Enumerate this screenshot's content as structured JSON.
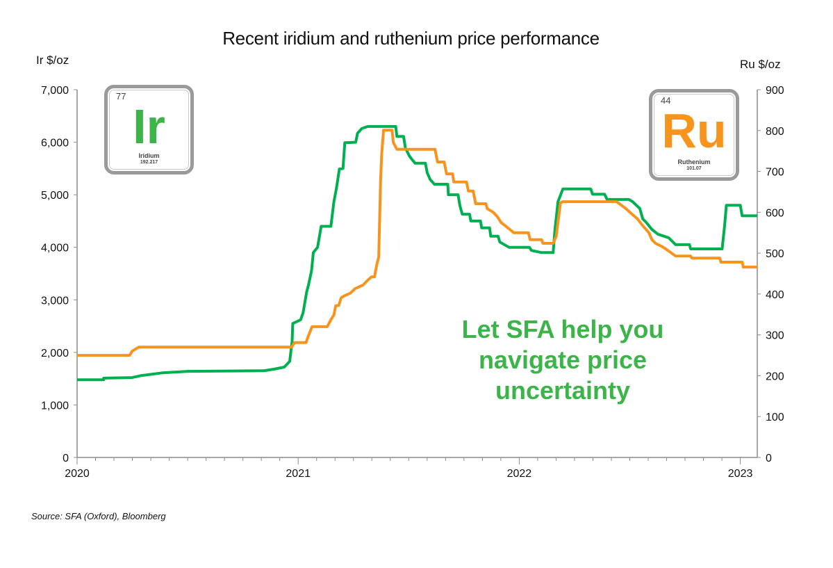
{
  "chart_data": {
    "type": "line",
    "title": "Recent iridium and ruthenium price performance",
    "ylabel_left": "Ir $/oz",
    "ylabel_right": "Ru $/oz",
    "xlabel": "",
    "x_ticks": [
      "2020",
      "2021",
      "2022",
      "2023"
    ],
    "y_left_ticks": [
      "0",
      "1,000",
      "2,000",
      "3,000",
      "4,000",
      "5,000",
      "6,000",
      "7,000"
    ],
    "y_right_ticks": [
      "0",
      "100",
      "200",
      "300",
      "400",
      "500",
      "600",
      "700",
      "800",
      "900"
    ],
    "ylim_left": [
      0,
      7000
    ],
    "ylim_right": [
      0,
      900
    ],
    "xlim": [
      "2020-01-01",
      "2023-01-29"
    ],
    "grid": false,
    "legend": "none",
    "series": [
      {
        "element": "Ir",
        "axis": "left",
        "color": "#00b050",
        "points": [
          [
            "2020-01-01",
            1480
          ],
          [
            "2020-02-14",
            1480
          ],
          [
            "2020-02-14",
            1510
          ],
          [
            "2020-04-01",
            1520
          ],
          [
            "2020-04-17",
            1560
          ],
          [
            "2020-05-21",
            1610
          ],
          [
            "2020-07-02",
            1640
          ],
          [
            "2020-11-05",
            1650
          ],
          [
            "2020-11-22",
            1680
          ],
          [
            "2020-12-09",
            1720
          ],
          [
            "2020-12-18",
            1830
          ],
          [
            "2020-12-22",
            2220
          ],
          [
            "2020-12-23",
            2550
          ],
          [
            "2021-01-05",
            2620
          ],
          [
            "2021-01-09",
            2750
          ],
          [
            "2021-01-15",
            3150
          ],
          [
            "2021-01-18",
            3280
          ],
          [
            "2021-01-23",
            3550
          ],
          [
            "2021-01-26",
            3900
          ],
          [
            "2021-02-02",
            4000
          ],
          [
            "2021-02-08",
            4400
          ],
          [
            "2021-02-24",
            4400
          ],
          [
            "2021-03-01",
            4870
          ],
          [
            "2021-03-05",
            5110
          ],
          [
            "2021-03-10",
            5490
          ],
          [
            "2021-03-16",
            5500
          ],
          [
            "2021-03-19",
            5990
          ],
          [
            "2021-04-06",
            6000
          ],
          [
            "2021-04-09",
            6170
          ],
          [
            "2021-04-16",
            6260
          ],
          [
            "2021-04-26",
            6300
          ],
          [
            "2021-06-11",
            6300
          ],
          [
            "2021-06-13",
            6110
          ],
          [
            "2021-06-24",
            6110
          ],
          [
            "2021-06-27",
            5890
          ],
          [
            "2021-07-04",
            5730
          ],
          [
            "2021-07-13",
            5600
          ],
          [
            "2021-07-30",
            5600
          ],
          [
            "2021-08-02",
            5420
          ],
          [
            "2021-08-07",
            5290
          ],
          [
            "2021-08-14",
            5200
          ],
          [
            "2021-09-05",
            5200
          ],
          [
            "2021-09-06",
            5000
          ],
          [
            "2021-09-22",
            5000
          ],
          [
            "2021-09-25",
            4790
          ],
          [
            "2021-09-29",
            4630
          ],
          [
            "2021-10-11",
            4630
          ],
          [
            "2021-10-13",
            4500
          ],
          [
            "2021-10-29",
            4500
          ],
          [
            "2021-10-31",
            4370
          ],
          [
            "2021-11-13",
            4370
          ],
          [
            "2021-11-15",
            4210
          ],
          [
            "2021-11-27",
            4210
          ],
          [
            "2021-11-30",
            4100
          ],
          [
            "2021-12-15",
            4000
          ],
          [
            "2022-01-18",
            4000
          ],
          [
            "2022-01-21",
            3940
          ],
          [
            "2022-02-07",
            3900
          ],
          [
            "2022-02-26",
            3900
          ],
          [
            "2022-03-01",
            4340
          ],
          [
            "2022-03-06",
            4870
          ],
          [
            "2022-03-14",
            5110
          ],
          [
            "2022-04-29",
            5110
          ],
          [
            "2022-05-02",
            5010
          ],
          [
            "2022-05-22",
            5010
          ],
          [
            "2022-05-26",
            4910
          ],
          [
            "2022-07-01",
            4910
          ],
          [
            "2022-07-07",
            4870
          ],
          [
            "2022-07-19",
            4740
          ],
          [
            "2022-07-24",
            4540
          ],
          [
            "2022-07-30",
            4470
          ],
          [
            "2022-08-08",
            4340
          ],
          [
            "2022-08-18",
            4250
          ],
          [
            "2022-09-05",
            4180
          ],
          [
            "2022-09-16",
            4050
          ],
          [
            "2022-10-09",
            4050
          ],
          [
            "2022-10-11",
            3970
          ],
          [
            "2022-12-02",
            3970
          ],
          [
            "2022-12-06",
            4400
          ],
          [
            "2022-12-09",
            4800
          ],
          [
            "2023-01-01",
            4800
          ],
          [
            "2023-01-04",
            4600
          ],
          [
            "2023-01-29",
            4600
          ]
        ]
      },
      {
        "element": "Ru",
        "axis": "right",
        "color": "#f7941d",
        "points": [
          [
            "2020-01-01",
            250
          ],
          [
            "2020-03-28",
            250
          ],
          [
            "2020-04-01",
            260
          ],
          [
            "2020-04-12",
            270
          ],
          [
            "2020-12-21",
            270
          ],
          [
            "2020-12-26",
            281
          ],
          [
            "2021-01-14",
            281
          ],
          [
            "2021-01-17",
            294
          ],
          [
            "2021-01-24",
            320
          ],
          [
            "2021-02-18",
            320
          ],
          [
            "2021-02-24",
            337
          ],
          [
            "2021-03-01",
            349
          ],
          [
            "2021-03-04",
            371
          ],
          [
            "2021-03-09",
            372
          ],
          [
            "2021-03-13",
            391
          ],
          [
            "2021-03-19",
            396
          ],
          [
            "2021-03-28",
            402
          ],
          [
            "2021-04-05",
            413
          ],
          [
            "2021-04-18",
            422
          ],
          [
            "2021-04-26",
            434
          ],
          [
            "2021-05-02",
            442
          ],
          [
            "2021-05-07",
            442
          ],
          [
            "2021-05-11",
            473
          ],
          [
            "2021-05-14",
            490
          ],
          [
            "2021-05-17",
            677
          ],
          [
            "2021-05-19",
            745
          ],
          [
            "2021-05-22",
            801
          ],
          [
            "2021-06-05",
            801
          ],
          [
            "2021-06-07",
            771
          ],
          [
            "2021-06-13",
            754
          ],
          [
            "2021-08-15",
            754
          ],
          [
            "2021-08-19",
            723
          ],
          [
            "2021-08-30",
            723
          ],
          [
            "2021-09-03",
            694
          ],
          [
            "2021-09-13",
            694
          ],
          [
            "2021-09-15",
            674
          ],
          [
            "2021-10-06",
            674
          ],
          [
            "2021-10-09",
            652
          ],
          [
            "2021-10-17",
            652
          ],
          [
            "2021-10-21",
            621
          ],
          [
            "2021-11-07",
            621
          ],
          [
            "2021-11-09",
            609
          ],
          [
            "2021-11-19",
            600
          ],
          [
            "2021-11-26",
            589
          ],
          [
            "2021-12-02",
            575
          ],
          [
            "2021-12-14",
            561
          ],
          [
            "2021-12-23",
            550
          ],
          [
            "2022-01-16",
            550
          ],
          [
            "2022-01-19",
            533
          ],
          [
            "2022-02-07",
            533
          ],
          [
            "2022-02-09",
            524
          ],
          [
            "2022-02-26",
            524
          ],
          [
            "2022-03-03",
            541
          ],
          [
            "2022-03-10",
            623
          ],
          [
            "2022-03-14",
            626
          ],
          [
            "2022-06-11",
            626
          ],
          [
            "2022-06-18",
            618
          ],
          [
            "2022-06-26",
            609
          ],
          [
            "2022-07-05",
            597
          ],
          [
            "2022-07-15",
            584
          ],
          [
            "2022-07-24",
            567
          ],
          [
            "2022-08-03",
            550
          ],
          [
            "2022-08-08",
            533
          ],
          [
            "2022-08-14",
            524
          ],
          [
            "2022-08-25",
            516
          ],
          [
            "2022-09-06",
            504
          ],
          [
            "2022-09-16",
            493
          ],
          [
            "2022-10-11",
            493
          ],
          [
            "2022-10-13",
            488
          ],
          [
            "2022-11-28",
            488
          ],
          [
            "2022-11-30",
            478
          ],
          [
            "2023-01-04",
            478
          ],
          [
            "2023-01-06",
            466
          ],
          [
            "2023-01-29",
            466
          ]
        ]
      }
    ],
    "annotation": "Let SFA help you navigate price uncertainty"
  },
  "element_boxes": {
    "ir": {
      "number": "77",
      "symbol": "Ir",
      "name": "Iridium",
      "mass": "192.217",
      "color": "#3cb44a"
    },
    "ru": {
      "number": "44",
      "symbol": "Ru",
      "name": "Ruthenium",
      "mass": "101.07",
      "color": "#f7941d"
    }
  },
  "callout": {
    "line1": "Let SFA help you",
    "line2": "navigate price",
    "line3": "uncertainty"
  },
  "source": "Source: SFA (Oxford), Bloomberg"
}
